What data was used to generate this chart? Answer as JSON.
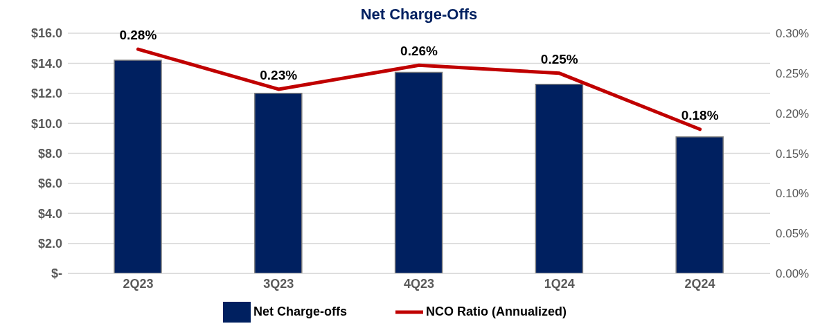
{
  "chart_data": {
    "type": "bar",
    "title": "Net Charge-Offs",
    "categories": [
      "2Q23",
      "3Q23",
      "4Q23",
      "1Q24",
      "2Q24"
    ],
    "series": [
      {
        "name": "Net Charge-offs",
        "color": "#002060",
        "values": [
          14.2,
          12.0,
          13.4,
          12.6,
          9.1
        ]
      },
      {
        "name": "NCO Ratio (Annualized)",
        "type": "line",
        "axis": "y2",
        "color": "#c00000",
        "values": [
          0.28,
          0.23,
          0.26,
          0.25,
          0.18
        ],
        "value_labels": [
          "0.28%",
          "0.23%",
          "0.26%",
          "0.25%",
          "0.18%"
        ]
      }
    ],
    "ylim": [
      0,
      16
    ],
    "yticks": [
      {
        "value": 0,
        "label": "$-"
      },
      {
        "value": 2,
        "label": "$2.0"
      },
      {
        "value": 4,
        "label": "$4.0"
      },
      {
        "value": 6,
        "label": "$6.0"
      },
      {
        "value": 8,
        "label": "$8.0"
      },
      {
        "value": 10,
        "label": "$10.0"
      },
      {
        "value": 12,
        "label": "$12.0"
      },
      {
        "value": 14,
        "label": "$14.0"
      },
      {
        "value": 16,
        "label": "$16.0"
      }
    ],
    "y2lim": [
      0,
      0.3
    ],
    "y2ticks": [
      {
        "value": 0,
        "label": "0.00%"
      },
      {
        "value": 0.05,
        "label": "0.05%"
      },
      {
        "value": 0.1,
        "label": "0.10%"
      },
      {
        "value": 0.15,
        "label": "0.15%"
      },
      {
        "value": 0.2,
        "label": "0.20%"
      },
      {
        "value": 0.25,
        "label": "0.25%"
      },
      {
        "value": 0.3,
        "label": "0.30%"
      }
    ],
    "grid": "y",
    "legend": "bottom",
    "marker": "none"
  }
}
